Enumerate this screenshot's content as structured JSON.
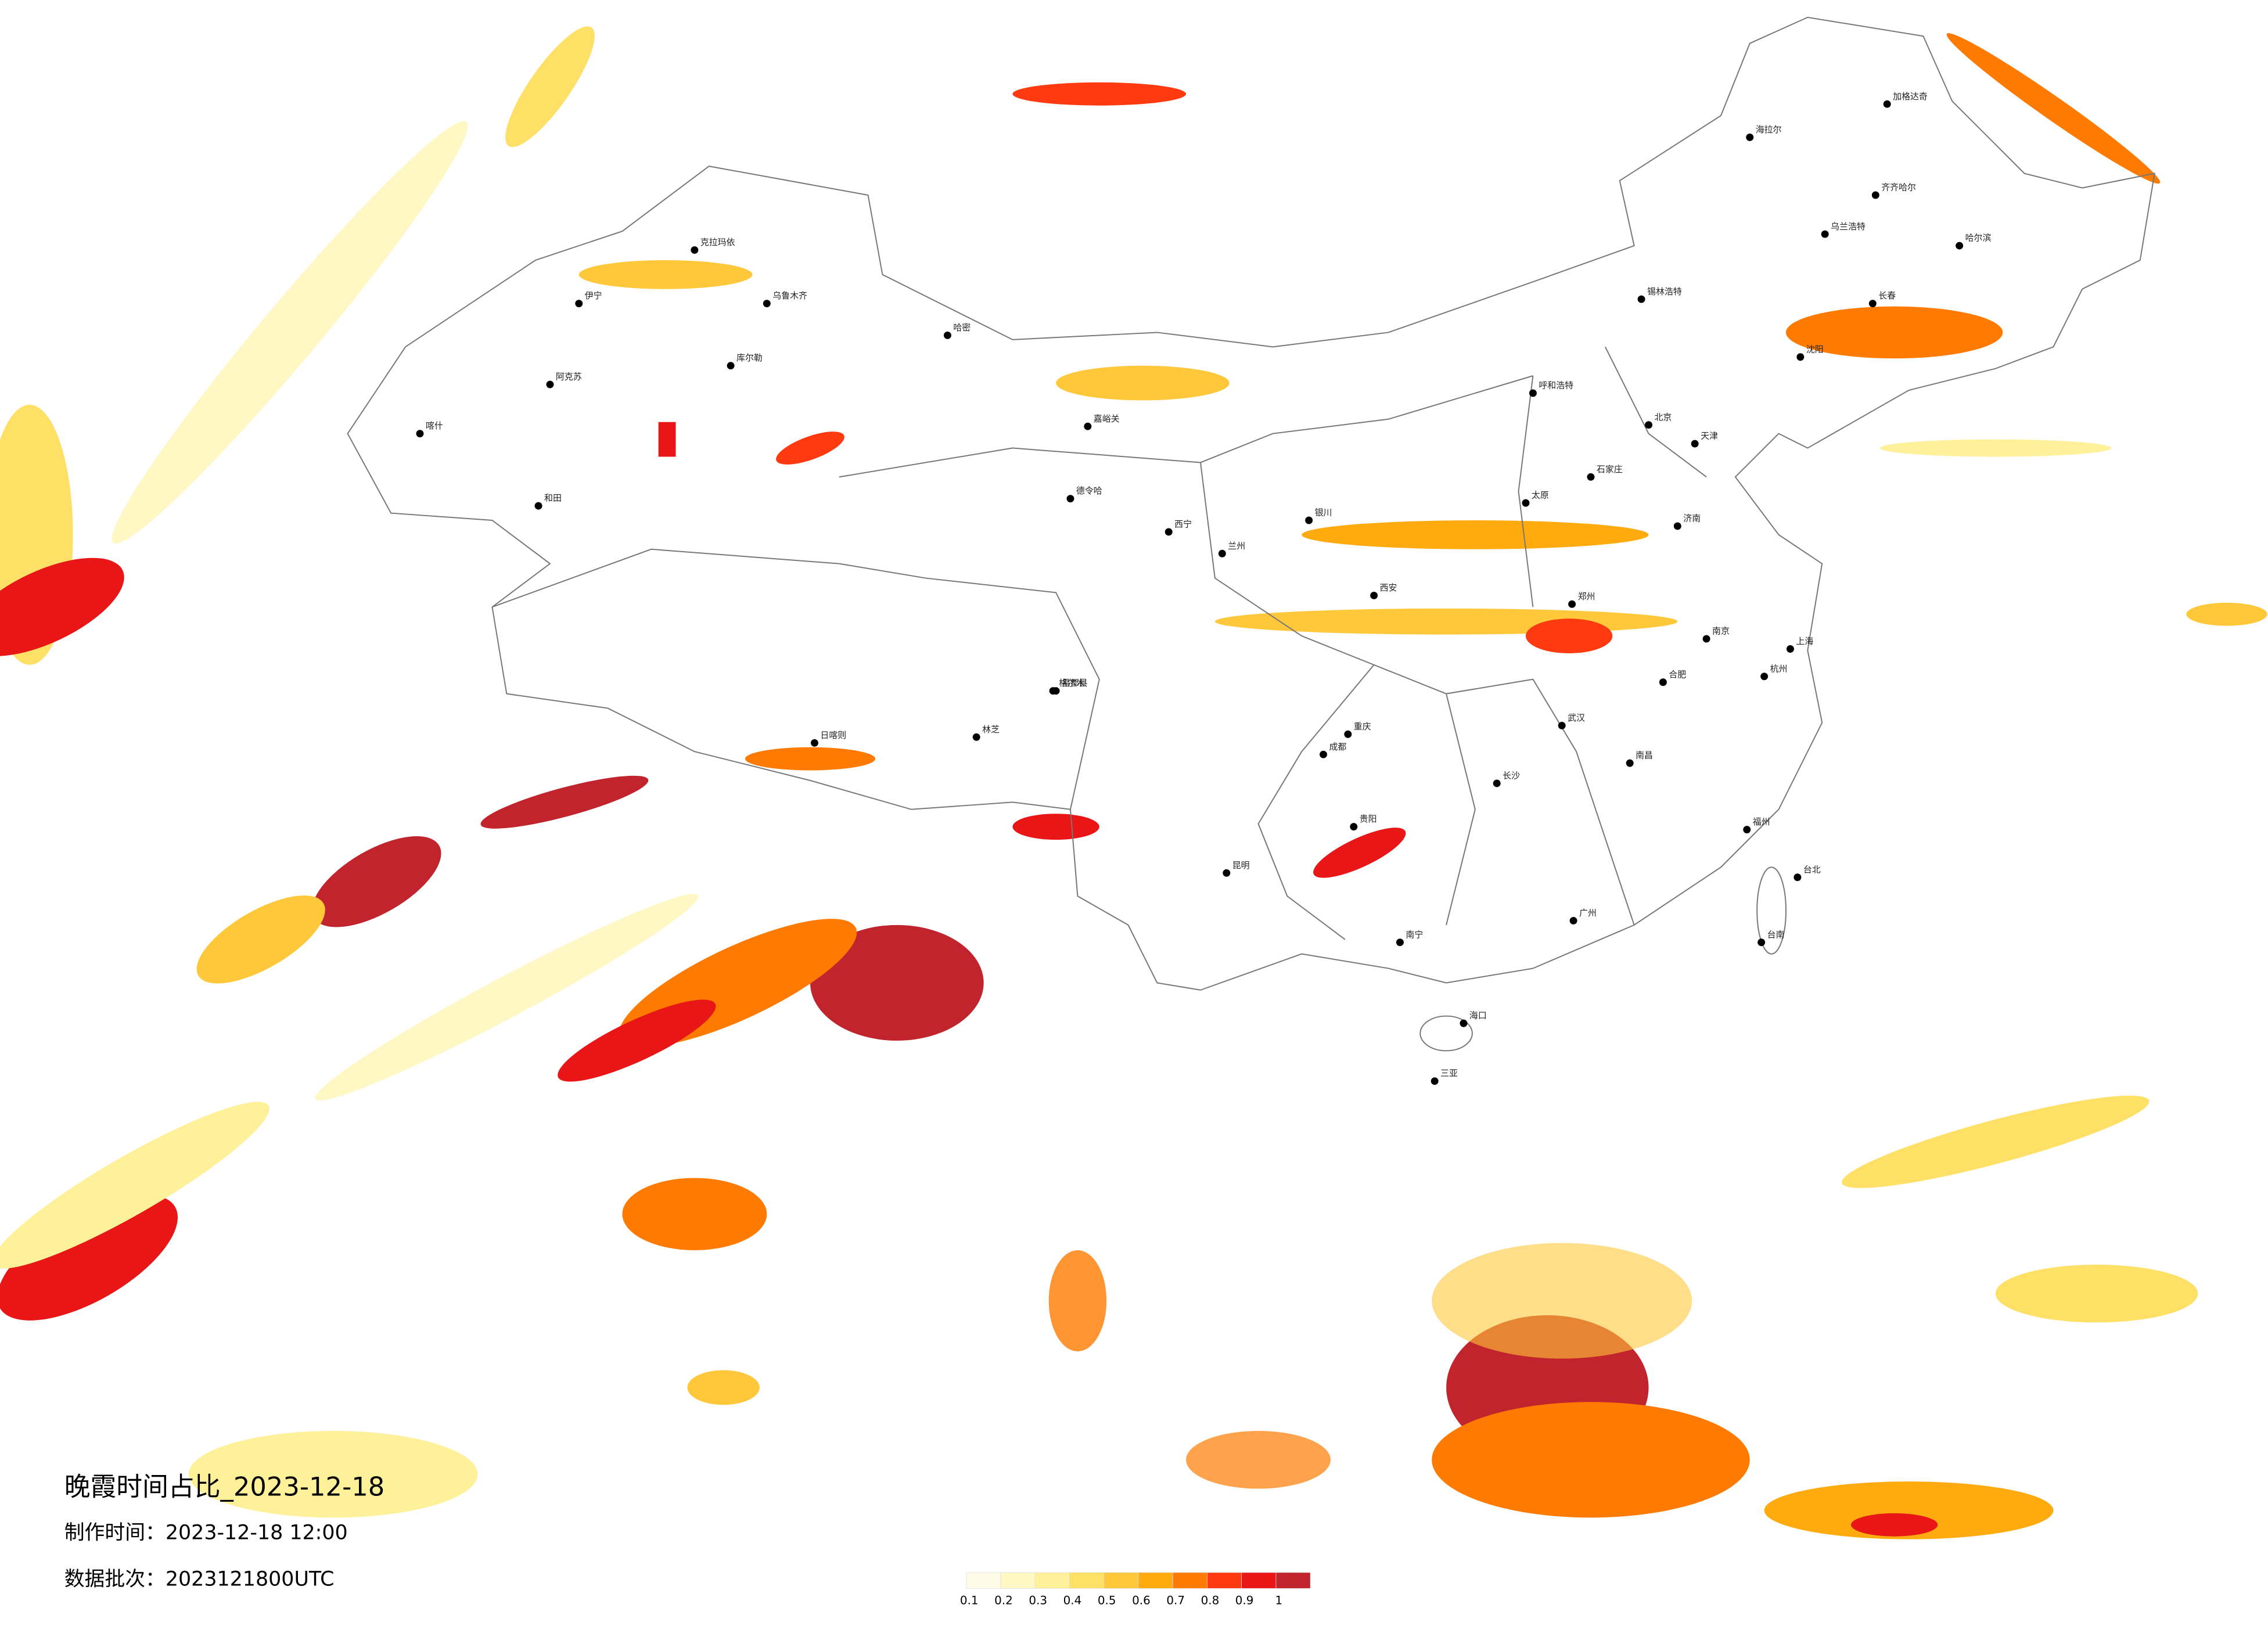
{
  "title": "晚霞时间占比_2023-12-18",
  "made_time": "制作时间：2023-12-18 12:00",
  "data_batch": "数据批次：2023121800UTC",
  "legend": {
    "labels": [
      0.1,
      0.2,
      0.3,
      0.4,
      0.5,
      0.6,
      0.7,
      0.8,
      0.9,
      1
    ],
    "colors": [
      "#fffbe8",
      "#fff7c4",
      "#fff09a",
      "#ffe066",
      "#ffc83a",
      "#ffab10",
      "#ff7a00",
      "#ff3a10",
      "#e81616",
      "#c1242c"
    ]
  },
  "cities": [
    "克拉玛依",
    "伊宁",
    "乌鲁木齐",
    "库尔勒",
    "阿克苏",
    "喀什",
    "和田",
    "哈密",
    "嘉峪关",
    "德令哈",
    "格尔木",
    "西宁",
    "兰州",
    "银川",
    "呼和浩特",
    "锡林浩特",
    "海拉尔",
    "加格达奇",
    "齐齐哈尔",
    "哈尔滨",
    "乌兰浩特",
    "长春",
    "沈阳",
    "北京",
    "天津",
    "石家庄",
    "太原",
    "济南",
    "郑州",
    "西安",
    "日喀则",
    "林芝",
    "昌都县",
    "成都",
    "重庆",
    "贵阳",
    "昆明",
    "南宁",
    "长沙",
    "武汉",
    "南昌",
    "合肥",
    "南京",
    "上海",
    "杭州",
    "福州",
    "广州",
    "海口",
    "三亚",
    "台北",
    "台南"
  ]
}
